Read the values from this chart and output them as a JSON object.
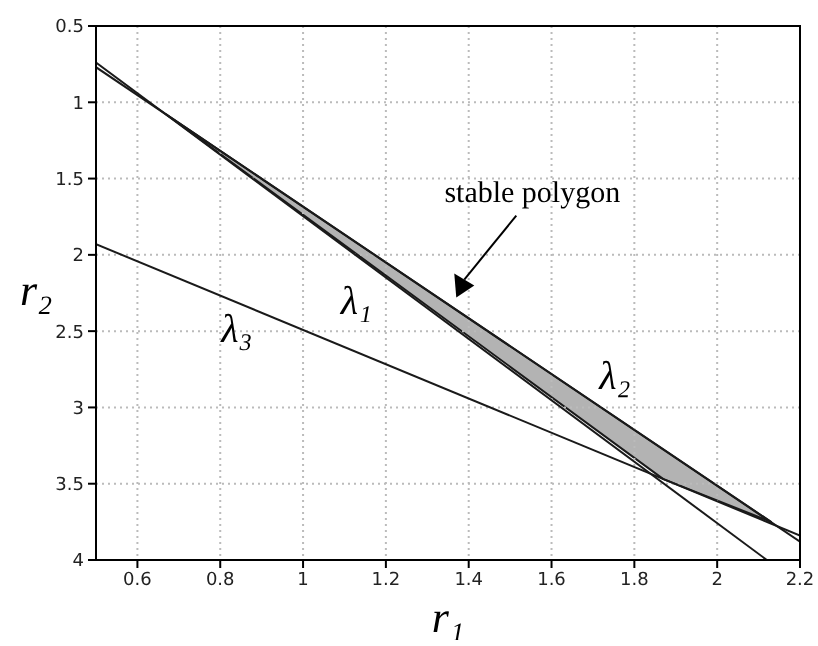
{
  "chart_data": {
    "type": "line",
    "xlabel": "r₁",
    "ylabel": "r₂",
    "xlim": [
      0.5,
      2.2
    ],
    "ylim": [
      4,
      0.5
    ],
    "xticks": [
      0.6,
      0.8,
      1,
      1.2,
      1.4,
      1.6,
      1.8,
      2,
      2.2
    ],
    "yticks": [
      0.5,
      1,
      1.5,
      2,
      2.5,
      3,
      3.5,
      4
    ],
    "grid": true,
    "marker": "none",
    "line_style": "solid",
    "series": [
      {
        "type": "area",
        "color": "#b3b3b3",
        "x": [
          0.67,
          2.13,
          1.87,
          0.67
        ],
        "values": [
          1.08,
          3.75,
          3.47,
          1.08
        ]
      },
      {
        "name": "λ₁",
        "color": "#1a1a1a",
        "x": [
          0.5,
          2.12
        ],
        "values": [
          0.74,
          4
        ]
      },
      {
        "name": "λ₂",
        "color": "#1a1a1a",
        "x": [
          0.5,
          2.2
        ],
        "values": [
          0.77,
          3.88
        ]
      },
      {
        "name": "λ₃",
        "color": "#1a1a1a",
        "x": [
          0.5,
          2.2
        ],
        "values": [
          1.93,
          3.84
        ]
      }
    ],
    "annotations": [
      {
        "text": "stable polygon",
        "x": 1.37,
        "y": 2.28
      }
    ]
  }
}
